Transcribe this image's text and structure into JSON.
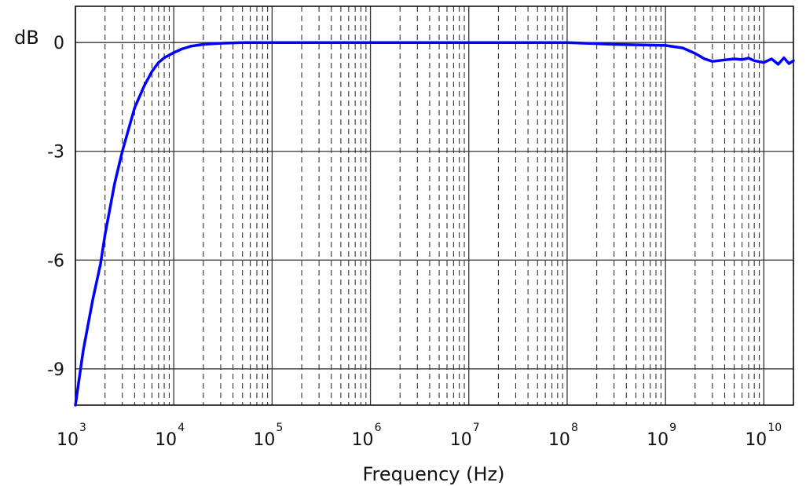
{
  "chart_data": {
    "type": "line",
    "title": "",
    "xlabel": "Frequency (Hz)",
    "ylabel": "dB",
    "xscale": "log",
    "xlim": [
      1000,
      20000000000
    ],
    "ylim": [
      -10,
      1
    ],
    "grid": {
      "x_major": "solid",
      "x_minor": "dashed",
      "y_major": "solid"
    },
    "x_ticks": [
      {
        "base": "10",
        "exp": "3",
        "value": 1000
      },
      {
        "base": "10",
        "exp": "4",
        "value": 10000
      },
      {
        "base": "10",
        "exp": "5",
        "value": 100000
      },
      {
        "base": "10",
        "exp": "6",
        "value": 1000000
      },
      {
        "base": "10",
        "exp": "7",
        "value": 10000000
      },
      {
        "base": "10",
        "exp": "8",
        "value": 100000000
      },
      {
        "base": "10",
        "exp": "9",
        "value": 1000000000
      },
      {
        "base": "10",
        "exp": "10",
        "value": 10000000000
      }
    ],
    "y_ticks": [
      {
        "label": "0",
        "value": 0
      },
      {
        "label": "-3",
        "value": -3
      },
      {
        "label": "-6",
        "value": -6
      },
      {
        "label": "-9",
        "value": -9
      }
    ],
    "series": [
      {
        "color": "#0000ff",
        "x": [
          1000,
          1200,
          1500,
          1800,
          2000,
          2500,
          3000,
          4000,
          5000,
          6000,
          7000,
          8000,
          10000,
          12000,
          15000,
          20000,
          30000,
          50000,
          100000,
          1000000,
          10000000,
          100000000,
          300000000,
          1000000000,
          1500000000,
          2000000000,
          2500000000,
          3000000000,
          4000000000,
          5000000000,
          6000000000,
          7000000000,
          8000000000,
          10000000000,
          12000000000,
          14000000000,
          16000000000,
          18000000000,
          20000000000
        ],
        "y": [
          -10,
          -8.5,
          -7.1,
          -6.1,
          -5.3,
          -3.9,
          -3.0,
          -1.8,
          -1.2,
          -0.8,
          -0.55,
          -0.42,
          -0.28,
          -0.18,
          -0.1,
          -0.05,
          -0.02,
          0,
          0,
          0,
          0,
          0,
          -0.05,
          -0.08,
          -0.15,
          -0.3,
          -0.45,
          -0.52,
          -0.48,
          -0.45,
          -0.47,
          -0.43,
          -0.5,
          -0.55,
          -0.45,
          -0.6,
          -0.42,
          -0.58,
          -0.5
        ]
      }
    ]
  }
}
